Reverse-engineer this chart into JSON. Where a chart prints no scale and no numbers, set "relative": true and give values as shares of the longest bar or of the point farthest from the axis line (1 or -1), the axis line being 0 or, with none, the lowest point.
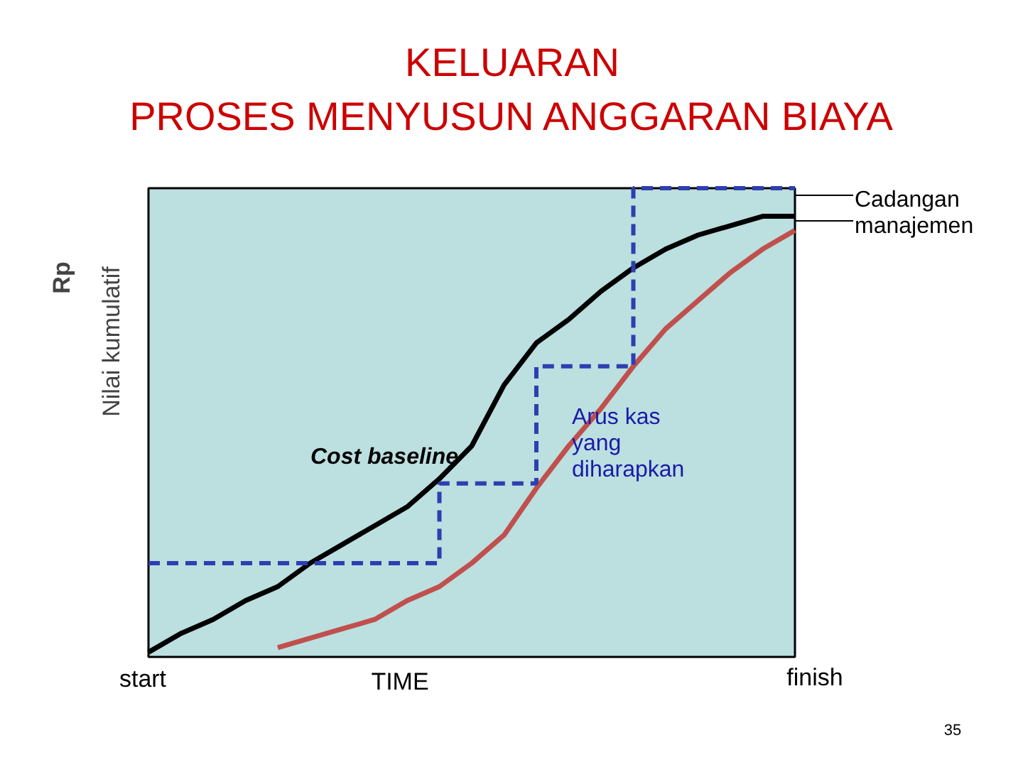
{
  "chart_data": {
    "type": "line",
    "title": "KELUARAN\nPROSES MENYUSUN ANGGARAN BIAYA",
    "ylabel": "Nilai kumulatif",
    "relative": true,
    "grid": false,
    "legend": false,
    "categories": [
      null,
      null,
      null,
      null,
      null,
      null,
      null,
      null,
      null,
      null,
      null,
      null,
      null,
      null,
      null,
      null,
      null,
      null,
      null,
      null,
      null
    ],
    "series": [
      {
        "name": "Cost baseline",
        "color": "#000000",
        "values": [
          0.01,
          0.05,
          0.08,
          0.12,
          0.15,
          0.2,
          0.24,
          0.28,
          0.32,
          0.38,
          0.45,
          0.58,
          0.67,
          0.72,
          0.78,
          0.83,
          0.87,
          0.9,
          0.92,
          0.94,
          0.94
        ]
      },
      {
        "name": "Arus kas\nyang\ndiharapkan",
        "color": "#c0504d",
        "values": [
          null,
          null,
          null,
          null,
          0.02,
          0.04,
          0.06,
          0.08,
          0.12,
          0.15,
          0.2,
          0.26,
          0.36,
          0.45,
          0.53,
          0.62,
          0.7,
          0.76,
          0.82,
          0.87,
          0.91
        ]
      },
      {
        "type": "step",
        "color": "#2e3fb0",
        "line_style": "dashed",
        "values": [
          0.2,
          0.2,
          0.2,
          0.2,
          0.2,
          0.2,
          0.2,
          0.2,
          0.2,
          0.2,
          0.37,
          0.37,
          0.37,
          0.62,
          0.62,
          0.62,
          1.0,
          1.0,
          1.0,
          1.0,
          1.0
        ]
      }
    ],
    "annotations": [
      "Cadangan\nmanajemen",
      "Rp",
      "start",
      "TIME",
      "finish",
      "35"
    ]
  }
}
